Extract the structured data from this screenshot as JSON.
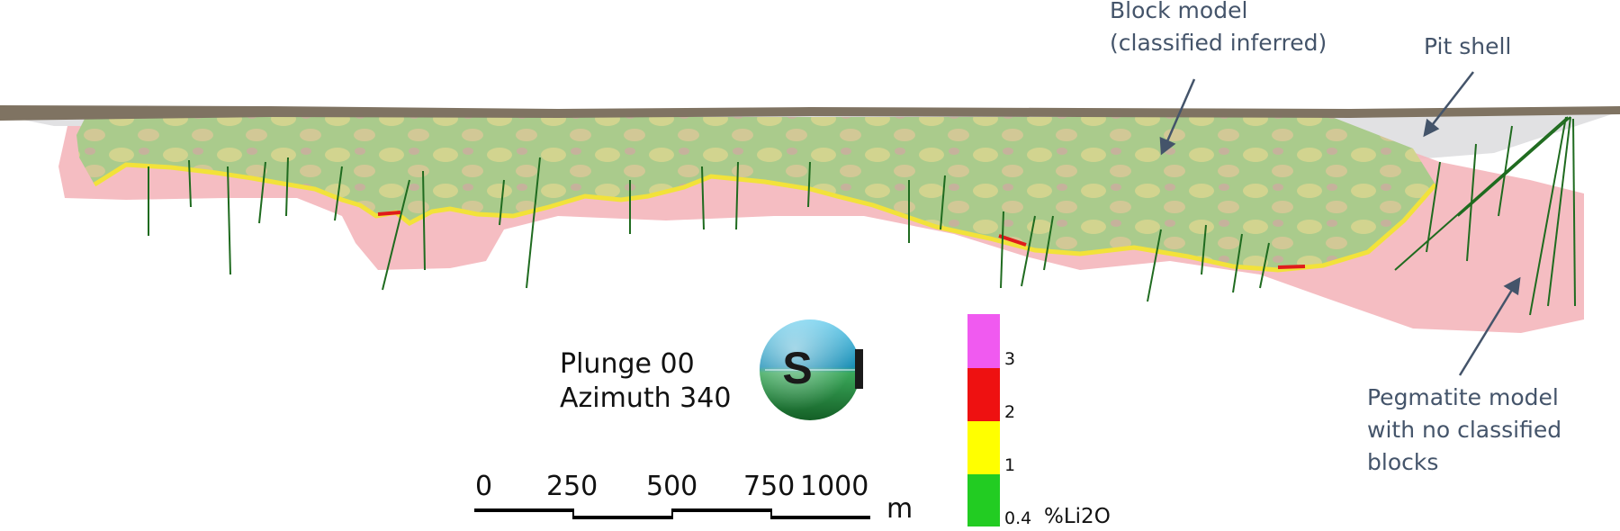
{
  "annotations": {
    "block_model": [
      "Block model",
      "(classified inferred)"
    ],
    "pit_shell": "Pit shell",
    "pegmatite_model": [
      "Pegmatite model",
      "with no classified",
      "blocks"
    ]
  },
  "view": {
    "plunge": "Plunge 00",
    "azimuth": "Azimuth 340",
    "compass_letter": "S"
  },
  "scale_bar": {
    "ticks": [
      "0",
      "250",
      "500",
      "750",
      "1000"
    ],
    "unit": "m"
  },
  "legend": {
    "unit": "%Li2O",
    "labels": [
      "3",
      "2",
      "1",
      "0.4"
    ],
    "colors": [
      "#f05af0",
      "#ee1111",
      "#ffff00",
      "#22cc22"
    ]
  },
  "colors": {
    "annotation_text": "#44546a",
    "pegmatite": "#f4b6bb",
    "block_green": "#a6c98a",
    "block_yellow": "#e6d98c",
    "topography": "#7f7362",
    "drillhole": "#1f6b1f"
  }
}
